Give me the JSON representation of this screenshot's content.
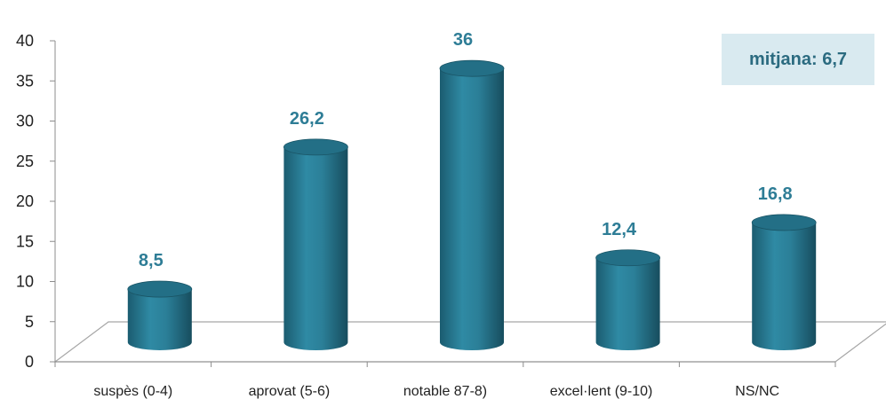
{
  "chart_data": {
    "type": "bar",
    "categories": [
      "suspès (0-4)",
      "aprovat (5-6)",
      "notable 87-8)",
      "excel·lent (9-10)",
      "NS/NC"
    ],
    "values": [
      8.5,
      26.2,
      36,
      12.4,
      16.8
    ],
    "data_labels": [
      "8,5",
      "26,2",
      "36",
      "12,4",
      "16,8"
    ],
    "y_ticks": [
      "0",
      "5",
      "10",
      "15",
      "20",
      "25",
      "30",
      "35",
      "40"
    ],
    "ylim": [
      0,
      40
    ],
    "grid": false,
    "annotation": "mitjana: 6,7",
    "colors": {
      "bar": "#2b7f98",
      "bar_dark": "#1a5566",
      "bar_top": "#236f86",
      "label": "#2e7d96",
      "annotation_bg": "#d9eaf0"
    }
  }
}
